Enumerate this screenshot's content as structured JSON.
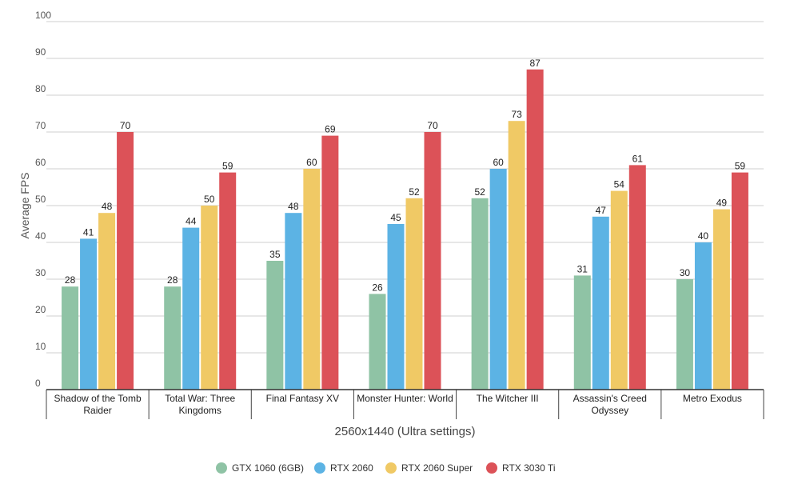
{
  "chart_data": {
    "type": "bar",
    "categories": [
      "Shadow of the Tomb Raider",
      "Total War: Three Kingdoms",
      "Final Fantasy XV",
      "Monster Hunter: World",
      "The Witcher III",
      "Assassin's Creed Odyssey",
      "Metro Exodus"
    ],
    "category_lines": [
      [
        "Shadow of the Tomb",
        "Raider"
      ],
      [
        "Total War: Three",
        "Kingdoms"
      ],
      [
        "Final Fantasy XV"
      ],
      [
        "Monster Hunter: World"
      ],
      [
        "The Witcher III"
      ],
      [
        "Assassin's Creed",
        "Odyssey"
      ],
      [
        "Metro Exodus"
      ]
    ],
    "series": [
      {
        "name": "GTX 1060 (6GB)",
        "color": "#8fc3a5",
        "values": [
          28,
          28,
          35,
          26,
          52,
          31,
          30
        ]
      },
      {
        "name": "RTX 2060",
        "color": "#5cb3e4",
        "values": [
          41,
          44,
          48,
          45,
          60,
          47,
          40
        ]
      },
      {
        "name": "RTX 2060 Super",
        "color": "#f0c965",
        "values": [
          48,
          50,
          60,
          52,
          73,
          54,
          49
        ]
      },
      {
        "name": "RTX 3030 Ti",
        "color": "#dc5258",
        "values": [
          70,
          59,
          69,
          70,
          87,
          61,
          59
        ]
      }
    ],
    "xlabel": "2560x1440 (Ultra settings)",
    "ylabel": "Average FPS",
    "ylim": [
      0,
      100
    ],
    "yticks": [
      0,
      10,
      20,
      30,
      40,
      50,
      60,
      70,
      80,
      90,
      100
    ],
    "grid": true,
    "legend": "bottom",
    "data_labels": true
  }
}
